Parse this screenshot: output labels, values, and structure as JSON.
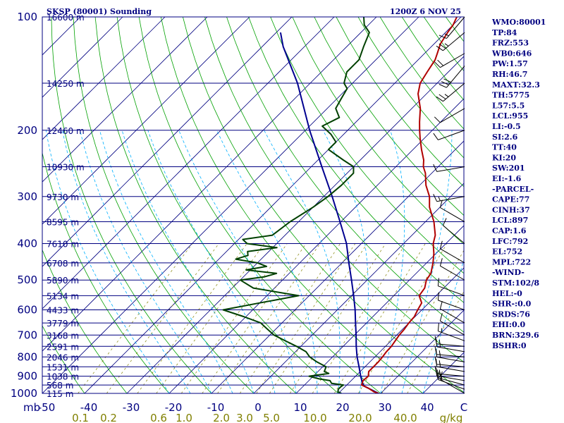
{
  "chart_data": {
    "type": "line",
    "title": "SKSP (80001) Sounding",
    "datetime": "1200Z  6 NOV 25",
    "pressure_axis": {
      "label": "mb",
      "ticks": [
        100,
        200,
        300,
        400,
        500,
        600,
        700,
        800,
        900,
        1000
      ],
      "range": [
        100,
        1000
      ]
    },
    "temperature_axis": {
      "label": "C",
      "ticks": [
        "-50",
        "-40",
        "-30",
        "-20",
        "-10",
        "0",
        "10",
        "20",
        "30",
        "40"
      ],
      "range": [
        -50,
        50
      ]
    },
    "mixing_ratio_axis": {
      "label": "g/kg",
      "ticks": [
        "0.1",
        "0.2",
        "0.6",
        "1.0",
        "2.0",
        "3.0",
        "5.0",
        "10.0",
        "20.0",
        "40.0"
      ]
    },
    "height_labels": [
      {
        "p": 100,
        "label": "16600 m"
      },
      {
        "p": 150,
        "label": "14250 m"
      },
      {
        "p": 200,
        "label": "12460 m"
      },
      {
        "p": 250,
        "label": "10930 m"
      },
      {
        "p": 300,
        "label": "9730 m"
      },
      {
        "p": 350,
        "label": "8595 m"
      },
      {
        "p": 400,
        "label": "7610 m"
      },
      {
        "p": 450,
        "label": "6708 m"
      },
      {
        "p": 500,
        "label": "5890 m"
      },
      {
        "p": 550,
        "label": "5134 m"
      },
      {
        "p": 600,
        "label": "4433 m"
      },
      {
        "p": 650,
        "label": "3779 m"
      },
      {
        "p": 700,
        "label": "3168 m"
      },
      {
        "p": 750,
        "label": "2591 m"
      },
      {
        "p": 800,
        "label": "2046 m"
      },
      {
        "p": 850,
        "label": "1531 m"
      },
      {
        "p": 900,
        "label": "1038 m"
      },
      {
        "p": 950,
        "label": "568 m"
      },
      {
        "p": 1000,
        "label": "115 m"
      }
    ],
    "series": [
      {
        "name": "Temperature",
        "color": "#b00000",
        "points": [
          [
            1000,
            29.5
          ],
          [
            990,
            28
          ],
          [
            970,
            26
          ],
          [
            950,
            23.5
          ],
          [
            925,
            22.8
          ],
          [
            900,
            23
          ],
          [
            875,
            22
          ],
          [
            850,
            22
          ],
          [
            825,
            22
          ],
          [
            800,
            21.8
          ],
          [
            775,
            21.5
          ],
          [
            750,
            21.4
          ],
          [
            700,
            20.6
          ],
          [
            675,
            20.4
          ],
          [
            650,
            20
          ],
          [
            625,
            19.8
          ],
          [
            600,
            19
          ],
          [
            575,
            18.3
          ],
          [
            550,
            16
          ],
          [
            525,
            15.5
          ],
          [
            500,
            14
          ],
          [
            480,
            13.5
          ],
          [
            450,
            11.5
          ],
          [
            425,
            9.5
          ],
          [
            400,
            7
          ],
          [
            380,
            5.5
          ],
          [
            350,
            2
          ],
          [
            320,
            -2.5
          ],
          [
            300,
            -5
          ],
          [
            280,
            -8.5
          ],
          [
            260,
            -11.5
          ],
          [
            250,
            -13.5
          ],
          [
            240,
            -15
          ],
          [
            225,
            -18
          ],
          [
            210,
            -21
          ],
          [
            200,
            -23
          ],
          [
            190,
            -25
          ],
          [
            175,
            -28
          ],
          [
            160,
            -32
          ],
          [
            150,
            -34
          ],
          [
            140,
            -35
          ],
          [
            130,
            -36
          ],
          [
            125,
            -37
          ],
          [
            118,
            -38.5
          ],
          [
            110,
            -39.5
          ],
          [
            105,
            -40
          ],
          [
            100,
            -41
          ]
        ]
      },
      {
        "name": "Dewpoint",
        "color": "#004000",
        "points": [
          [
            1000,
            20.7
          ],
          [
            990,
            19.5
          ],
          [
            975,
            19
          ],
          [
            960,
            19
          ],
          [
            950,
            19.2
          ],
          [
            940,
            16
          ],
          [
            925,
            15
          ],
          [
            915,
            12
          ],
          [
            900,
            9
          ],
          [
            885,
            13
          ],
          [
            875,
            11.5
          ],
          [
            850,
            10.8
          ],
          [
            825,
            7.5
          ],
          [
            800,
            4.6
          ],
          [
            775,
            2.5
          ],
          [
            750,
            -1
          ],
          [
            725,
            -5
          ],
          [
            700,
            -9
          ],
          [
            675,
            -12
          ],
          [
            650,
            -15
          ],
          [
            625,
            -20.6
          ],
          [
            600,
            -27
          ],
          [
            575,
            -20
          ],
          [
            550,
            -12.5
          ],
          [
            525,
            -25
          ],
          [
            500,
            -30
          ],
          [
            490,
            -25
          ],
          [
            480,
            -23
          ],
          [
            470,
            -31
          ],
          [
            460,
            -27
          ],
          [
            450,
            -30
          ],
          [
            440,
            -36
          ],
          [
            430,
            -34
          ],
          [
            420,
            -35
          ],
          [
            410,
            -29
          ],
          [
            400,
            -37
          ],
          [
            390,
            -39
          ],
          [
            380,
            -33
          ],
          [
            350,
            -32
          ],
          [
            320,
            -30
          ],
          [
            300,
            -29
          ],
          [
            280,
            -28.5
          ],
          [
            260,
            -28.5
          ],
          [
            250,
            -30
          ],
          [
            240,
            -34
          ],
          [
            225,
            -40
          ],
          [
            215,
            -40
          ],
          [
            205,
            -43
          ],
          [
            195,
            -47
          ],
          [
            185,
            -45
          ],
          [
            175,
            -48
          ],
          [
            165,
            -49
          ],
          [
            155,
            -50
          ],
          [
            150,
            -52
          ],
          [
            140,
            -54
          ],
          [
            130,
            -54
          ],
          [
            120,
            -56
          ],
          [
            110,
            -58
          ],
          [
            105,
            -61
          ],
          [
            100,
            -63
          ]
        ]
      },
      {
        "name": "Parcel",
        "color": "#000090",
        "points": [
          [
            1000,
            29.5
          ],
          [
            955,
            24.2
          ],
          [
            930,
            22.8
          ],
          [
            900,
            21.2
          ],
          [
            850,
            18.6
          ],
          [
            800,
            15.8
          ],
          [
            750,
            13.1
          ],
          [
            700,
            10.4
          ],
          [
            650,
            7.4
          ],
          [
            600,
            4.2
          ],
          [
            550,
            0.5
          ],
          [
            500,
            -3.7
          ],
          [
            450,
            -8.4
          ],
          [
            400,
            -13.5
          ],
          [
            350,
            -20.2
          ],
          [
            300,
            -28
          ],
          [
            250,
            -37.5
          ],
          [
            200,
            -49
          ],
          [
            150,
            -63
          ],
          [
            120,
            -75
          ],
          [
            110,
            -79
          ]
        ]
      }
    ]
  },
  "indices": [
    "WMO:80001",
    "TP:84",
    "FRZ:553",
    "WB0:646",
    "PW:1.57",
    "RH:46.7",
    "MAXT:32.3",
    "TH:5775",
    "L57:5.5",
    "LCL:955",
    "LI:-0.5",
    "SI:2.6",
    "TT:40",
    "KI:20",
    "SW:201",
    "EI:-1.6",
    "-PARCEL-",
    "CAPE:77",
    "CINH:37",
    "LCL:897",
    "CAP:1.6",
    "LFC:792",
    "EL:752",
    "MPL:722",
    "-WIND-",
    "STM:102/8",
    "HEL:-0",
    "SHR-:0.0",
    "SRDS:76",
    "EHI:0.0",
    "BRN:329.6",
    "BSHR:0"
  ],
  "wind_barbs": [
    {
      "p": 1000,
      "dir": 300,
      "spd": 10
    },
    {
      "p": 975,
      "dir": 290,
      "spd": 15
    },
    {
      "p": 950,
      "dir": 285,
      "spd": 15
    },
    {
      "p": 925,
      "dir": 280,
      "spd": 15
    },
    {
      "p": 900,
      "dir": 275,
      "spd": 15
    },
    {
      "p": 875,
      "dir": 280,
      "spd": 15
    },
    {
      "p": 850,
      "dir": 275,
      "spd": 15
    },
    {
      "p": 825,
      "dir": 280,
      "spd": 15
    },
    {
      "p": 800,
      "dir": 275,
      "spd": 15
    },
    {
      "p": 775,
      "dir": 280,
      "spd": 15
    },
    {
      "p": 750,
      "dir": 275,
      "spd": 15
    },
    {
      "p": 725,
      "dir": 290,
      "spd": 15
    },
    {
      "p": 700,
      "dir": 300,
      "spd": 10
    },
    {
      "p": 650,
      "dir": 300,
      "spd": 10
    },
    {
      "p": 600,
      "dir": 290,
      "spd": 10
    },
    {
      "p": 550,
      "dir": 290,
      "spd": 10
    },
    {
      "p": 500,
      "dir": 300,
      "spd": 10
    },
    {
      "p": 450,
      "dir": 300,
      "spd": 10
    },
    {
      "p": 400,
      "dir": 310,
      "spd": 10
    },
    {
      "p": 350,
      "dir": 300,
      "spd": 10
    },
    {
      "p": 300,
      "dir": 260,
      "spd": 15
    },
    {
      "p": 250,
      "dir": 260,
      "spd": 10
    },
    {
      "p": 200,
      "dir": 250,
      "spd": 10
    },
    {
      "p": 175,
      "dir": 240,
      "spd": 10
    },
    {
      "p": 150,
      "dir": 230,
      "spd": 25
    },
    {
      "p": 135,
      "dir": 220,
      "spd": 30
    },
    {
      "p": 125,
      "dir": 240,
      "spd": 20
    },
    {
      "p": 110,
      "dir": 230,
      "spd": 25
    },
    {
      "p": 100,
      "dir": 220,
      "spd": 15
    }
  ],
  "colors": {
    "isobar": "#000080",
    "isotherm": "#000080",
    "dry_adiabat": "#00a000",
    "moist_adiabat": "#00b0ff",
    "mixing_ratio": "#808000",
    "frame": "#000080"
  }
}
